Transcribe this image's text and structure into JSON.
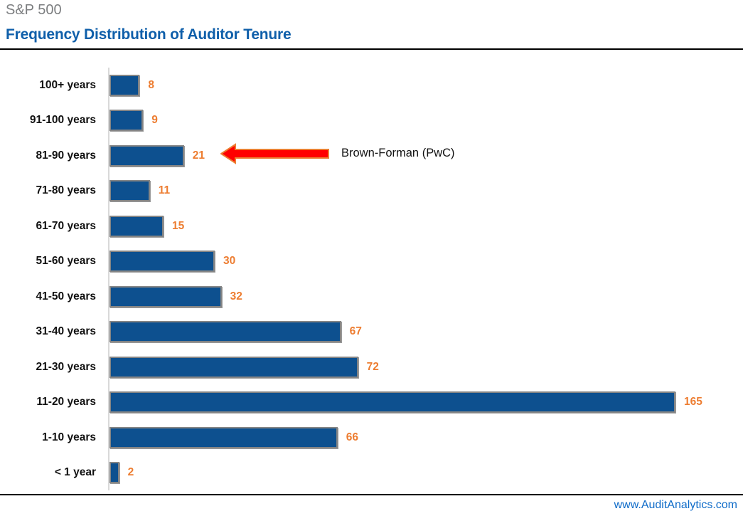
{
  "header": {
    "eyebrow": "S&P 500",
    "title": "Frequency Distribution of Auditor Tenure"
  },
  "annotation": {
    "label": "Brown-Forman (PwC)",
    "arrow_icon": "left-arrow",
    "arrow_fill": "#FF0000",
    "arrow_stroke": "#ED7D31"
  },
  "footer": {
    "link": "www.AuditAnalytics.com"
  },
  "colors": {
    "bar_fill": "#0D508F",
    "bar_border": "#858585",
    "value_label_orange": "#ED7D31",
    "title_blue": "#0F5FAA",
    "eyebrow_gray": "#7C7E80",
    "footer_link_blue": "#0E6BC8",
    "axis_line_gray": "#D9D9D9",
    "rule_black": "#000000"
  },
  "chart_data": {
    "type": "bar",
    "orientation": "horizontal",
    "title": "Frequency Distribution of Auditor Tenure",
    "subtitle": "S&P 500",
    "xlabel": "",
    "ylabel": "",
    "categories": [
      "100+ years",
      "91-100 years",
      "81-90 years",
      "71-80 years",
      "61-70 years",
      "51-60 years",
      "41-50 years",
      "31-40 years",
      "21-30 years",
      "11-20 years",
      "1-10 years",
      "< 1 year"
    ],
    "values": [
      8,
      9,
      21,
      11,
      15,
      30,
      32,
      67,
      72,
      165,
      66,
      2
    ],
    "xlim": [
      0,
      172
    ],
    "grid": false,
    "legend": false,
    "data_labels": true,
    "annotation": {
      "text": "Brown-Forman (PwC)",
      "category": "81-90 years",
      "value": 21
    }
  }
}
